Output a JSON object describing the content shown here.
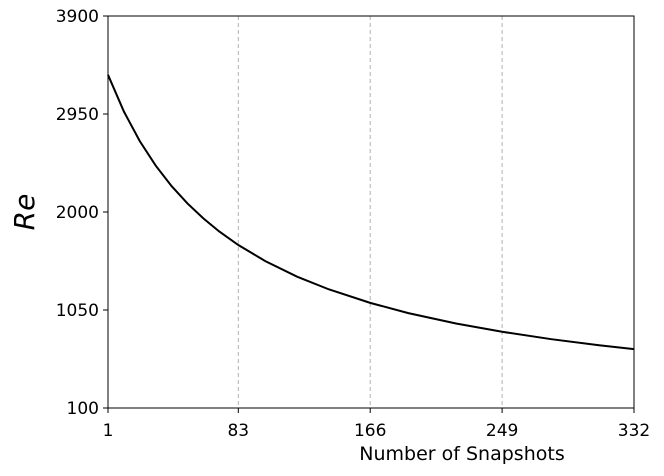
{
  "chart_data": {
    "type": "line",
    "xlabel": "Number of Snapshots",
    "ylabel": "Re",
    "x": [
      1,
      11,
      21,
      31,
      41,
      51,
      61,
      71,
      83,
      100,
      120,
      140,
      166,
      190,
      220,
      249,
      280,
      310,
      332
    ],
    "series": [
      {
        "color": "#000000",
        "values": [
          3330,
          2974,
          2687,
          2450,
          2251,
          2083,
          1938,
          1811,
          1680,
          1524,
          1373,
          1250,
          1119,
          1020,
          919,
          839,
          767,
          708,
          671
        ]
      }
    ],
    "xlim": [
      1,
      332
    ],
    "xticks": [
      1,
      83,
      166,
      249,
      332
    ],
    "ylim": [
      100,
      3900
    ],
    "yticks": [
      100,
      1050,
      2000,
      2950,
      3900
    ],
    "grid": "x"
  }
}
